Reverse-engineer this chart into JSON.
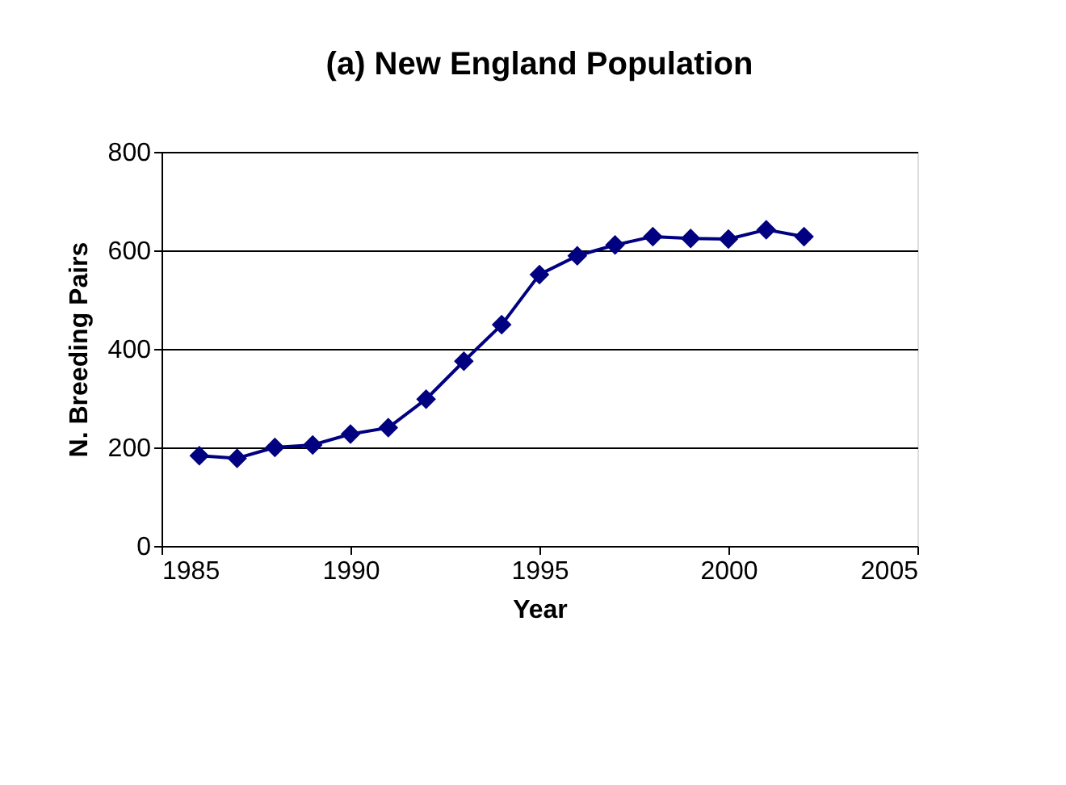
{
  "chart_data": {
    "type": "line",
    "title": "(a)  New England Population",
    "xlabel": "Year",
    "ylabel": "N. Breeding Pairs",
    "x": [
      1986,
      1987,
      1988,
      1989,
      1990,
      1991,
      1992,
      1993,
      1994,
      1995,
      1996,
      1997,
      1998,
      1999,
      2000,
      2001,
      2002
    ],
    "series": [
      {
        "color": "#000080",
        "values": [
          183,
          178,
          200,
          205,
          227,
          240,
          298,
          375,
          449,
          551,
          589,
          611,
          628,
          624,
          623,
          642,
          628
        ]
      }
    ],
    "xlim": [
      1985,
      2005
    ],
    "xticks": [
      1985,
      1990,
      1995,
      2000,
      2005
    ],
    "ylim": [
      0,
      800
    ],
    "yticks": [
      0,
      200,
      400,
      600,
      800
    ],
    "grid": "y",
    "marker": "diamond",
    "line_style": "solid"
  }
}
